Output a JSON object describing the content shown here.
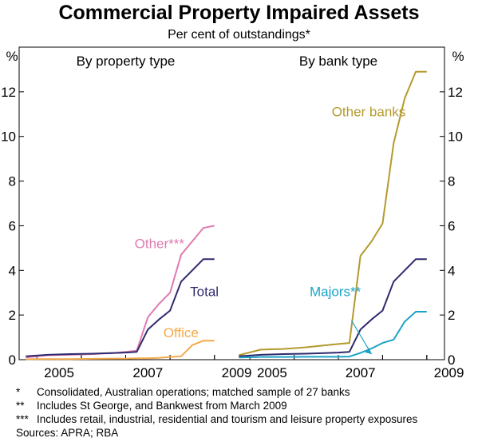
{
  "title": "Commercial Property Impaired Assets",
  "subtitle": "Per cent of outstandings*",
  "colors": {
    "Total": "#2e2a6e",
    "Other***": "#e07ab0",
    "Office": "#f5a94a",
    "Other banks": "#b49a2c",
    "Majors**": "#1aa3c8",
    "axis": "#000000"
  },
  "chart_data": [
    {
      "type": "line",
      "panel_title": "By property type",
      "ylabel": "%",
      "ylim": [
        0,
        14
      ],
      "yticks": [
        "0",
        "2",
        "4",
        "6",
        "8",
        "10",
        "12"
      ],
      "xlim": [
        2004.6,
        2009.4
      ],
      "xticks": [
        "2005",
        "2007",
        "2009"
      ],
      "series": [
        {
          "name": "Other***",
          "label_pos": [
            2007.2,
            5.0
          ],
          "x": [
            2004.75,
            2005.25,
            2005.75,
            2006.25,
            2006.75,
            2007.0,
            2007.25,
            2007.5,
            2007.75,
            2008.0,
            2008.25,
            2008.5,
            2008.75,
            2009.0
          ],
          "y": [
            0.1,
            0.2,
            0.22,
            0.25,
            0.3,
            0.35,
            0.4,
            1.9,
            2.5,
            3.0,
            4.7,
            5.3,
            5.9,
            6.0
          ]
        },
        {
          "name": "Total",
          "label_pos": [
            2008.45,
            2.85
          ],
          "x": [
            2004.75,
            2005.25,
            2005.75,
            2006.25,
            2006.75,
            2007.0,
            2007.25,
            2007.5,
            2007.75,
            2008.0,
            2008.25,
            2008.5,
            2008.75,
            2009.0
          ],
          "y": [
            0.15,
            0.22,
            0.25,
            0.27,
            0.3,
            0.32,
            0.35,
            1.35,
            1.8,
            2.2,
            3.5,
            4.0,
            4.5,
            4.5
          ]
        },
        {
          "name": "Office",
          "label_pos": [
            2007.85,
            1.0
          ],
          "x": [
            2004.75,
            2005.25,
            2005.75,
            2006.25,
            2006.75,
            2007.0,
            2007.25,
            2007.5,
            2007.75,
            2008.0,
            2008.25,
            2008.5,
            2008.75,
            2009.0
          ],
          "y": [
            0.02,
            0.03,
            0.03,
            0.04,
            0.05,
            0.05,
            0.06,
            0.06,
            0.08,
            0.12,
            0.15,
            0.65,
            0.85,
            0.85
          ]
        }
      ]
    },
    {
      "type": "line",
      "panel_title": "By bank type",
      "ylabel": "%",
      "ylim": [
        0,
        14
      ],
      "yticks": [
        "0",
        "2",
        "4",
        "6",
        "8",
        "10",
        "12"
      ],
      "xlim": [
        2004.6,
        2009.4
      ],
      "xticks": [
        "2005",
        "2007",
        "2009"
      ],
      "series": [
        {
          "name": "Other banks",
          "label_pos": [
            2006.85,
            10.9
          ],
          "x": [
            2004.75,
            2005.25,
            2005.75,
            2006.25,
            2006.75,
            2007.0,
            2007.25,
            2007.5,
            2007.75,
            2008.0,
            2008.25,
            2008.5,
            2008.75,
            2009.0
          ],
          "y": [
            0.2,
            0.45,
            0.48,
            0.55,
            0.65,
            0.7,
            0.75,
            4.65,
            5.3,
            6.1,
            9.7,
            11.7,
            12.9,
            12.9
          ]
        },
        {
          "name": "Total",
          "x": [
            2004.75,
            2005.25,
            2005.75,
            2006.25,
            2006.75,
            2007.0,
            2007.25,
            2007.5,
            2007.75,
            2008.0,
            2008.25,
            2008.5,
            2008.75,
            2009.0
          ],
          "y": [
            0.15,
            0.22,
            0.25,
            0.27,
            0.3,
            0.32,
            0.35,
            1.35,
            1.8,
            2.2,
            3.5,
            4.0,
            4.5,
            4.5
          ]
        },
        {
          "name": "Majors**",
          "label_pos": [
            2006.35,
            2.85
          ],
          "x": [
            2004.75,
            2005.25,
            2005.75,
            2006.25,
            2006.75,
            2007.0,
            2007.25,
            2007.5,
            2007.75,
            2008.0,
            2008.25,
            2008.5,
            2008.75,
            2009.0
          ],
          "y": [
            0.1,
            0.12,
            0.12,
            0.13,
            0.13,
            0.13,
            0.14,
            0.3,
            0.5,
            0.75,
            0.9,
            1.7,
            2.15,
            2.15
          ]
        }
      ]
    }
  ],
  "footnotes": [
    {
      "mark": "*",
      "text": "Consolidated, Australian operations; matched sample of 27 banks"
    },
    {
      "mark": "**",
      "text": "Includes St George, and Bankwest from March 2009"
    },
    {
      "mark": "***",
      "text": "Includes retail, industrial, residential and tourism and leisure property exposures"
    }
  ],
  "sources": "Sources: APRA; RBA"
}
